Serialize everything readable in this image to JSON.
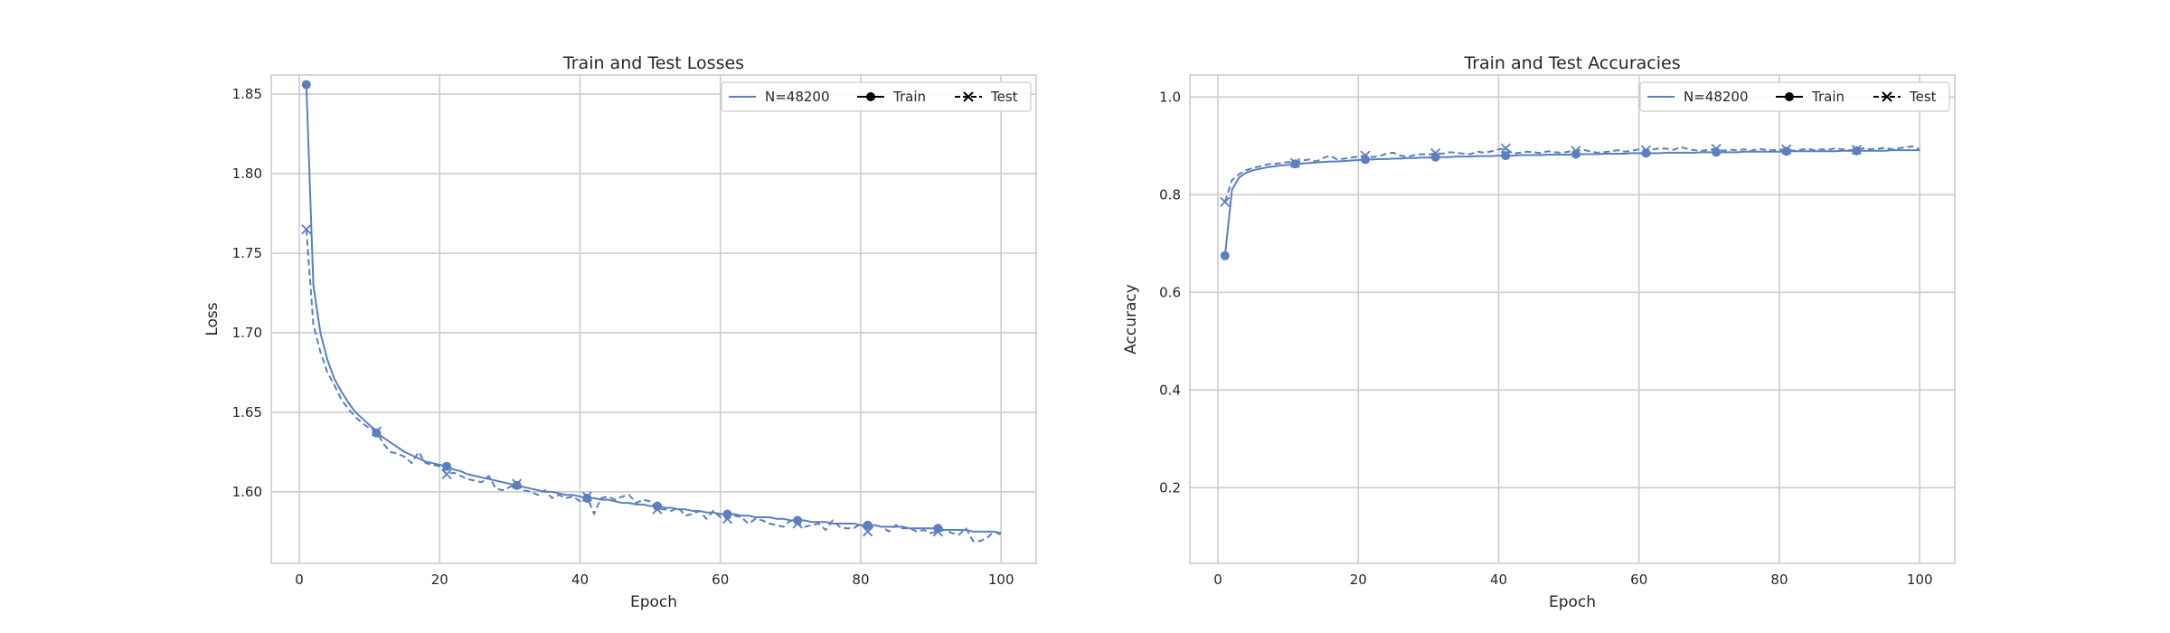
{
  "colors": {
    "series": "#5b7fbf",
    "legend_marker": "#000000",
    "grid": "#cccccc"
  },
  "chart_data": [
    {
      "type": "line",
      "title": "Train and Test Losses",
      "xlabel": "Epoch",
      "ylabel": "Loss",
      "xlim": [
        -4,
        105
      ],
      "ylim": [
        1.555,
        1.862
      ],
      "xticks": [
        0,
        20,
        40,
        60,
        80,
        100
      ],
      "yticks": [
        1.6,
        1.65,
        1.7,
        1.75,
        1.8,
        1.85
      ],
      "ytick_decimals": 2,
      "grid": true,
      "legend_position": "top-right",
      "legend": [
        "N=48200",
        "Train",
        "Test"
      ],
      "series": [
        {
          "name": "Train",
          "style": "solid",
          "marker": "circle",
          "marker_every": 10,
          "x": [
            1,
            2,
            3,
            4,
            5,
            6,
            7,
            8,
            9,
            10,
            11,
            12,
            13,
            14,
            15,
            16,
            17,
            18,
            19,
            20,
            21,
            22,
            23,
            24,
            25,
            26,
            27,
            28,
            29,
            30,
            31,
            32,
            33,
            34,
            35,
            36,
            37,
            38,
            39,
            40,
            41,
            42,
            43,
            44,
            45,
            46,
            47,
            48,
            49,
            50,
            51,
            52,
            53,
            54,
            55,
            56,
            57,
            58,
            59,
            60,
            61,
            62,
            63,
            64,
            65,
            66,
            67,
            68,
            69,
            70,
            71,
            72,
            73,
            74,
            75,
            76,
            77,
            78,
            79,
            80,
            81,
            82,
            83,
            84,
            85,
            86,
            87,
            88,
            89,
            90,
            91,
            92,
            93,
            94,
            95,
            96,
            97,
            98,
            99,
            100
          ],
          "y": [
            1.856,
            1.73,
            1.7,
            1.683,
            1.671,
            1.663,
            1.656,
            1.65,
            1.646,
            1.642,
            1.637,
            1.634,
            1.631,
            1.628,
            1.625,
            1.623,
            1.621,
            1.619,
            1.618,
            1.617,
            1.616,
            1.614,
            1.613,
            1.611,
            1.61,
            1.609,
            1.608,
            1.607,
            1.606,
            1.605,
            1.604,
            1.603,
            1.602,
            1.601,
            1.6,
            1.6,
            1.599,
            1.598,
            1.598,
            1.597,
            1.596,
            1.596,
            1.595,
            1.595,
            1.594,
            1.593,
            1.593,
            1.592,
            1.592,
            1.591,
            1.591,
            1.59,
            1.59,
            1.589,
            1.589,
            1.588,
            1.588,
            1.587,
            1.587,
            1.586,
            1.586,
            1.586,
            1.585,
            1.585,
            1.584,
            1.584,
            1.584,
            1.583,
            1.583,
            1.582,
            1.582,
            1.582,
            1.581,
            1.581,
            1.581,
            1.58,
            1.58,
            1.58,
            1.58,
            1.579,
            1.579,
            1.579,
            1.578,
            1.578,
            1.578,
            1.578,
            1.577,
            1.577,
            1.577,
            1.577,
            1.577,
            1.576,
            1.576,
            1.576,
            1.576,
            1.575,
            1.575,
            1.575,
            1.575,
            1.574
          ]
        },
        {
          "name": "Test",
          "style": "dashed",
          "marker": "x",
          "marker_every": 10,
          "x": [
            1,
            2,
            3,
            4,
            5,
            6,
            7,
            8,
            9,
            10,
            11,
            12,
            13,
            14,
            15,
            16,
            17,
            18,
            19,
            20,
            21,
            22,
            23,
            24,
            25,
            26,
            27,
            28,
            29,
            30,
            31,
            32,
            33,
            34,
            35,
            36,
            37,
            38,
            39,
            40,
            41,
            42,
            43,
            44,
            45,
            46,
            47,
            48,
            49,
            50,
            51,
            52,
            53,
            54,
            55,
            56,
            57,
            58,
            59,
            60,
            61,
            62,
            63,
            64,
            65,
            66,
            67,
            68,
            69,
            70,
            71,
            72,
            73,
            74,
            75,
            76,
            77,
            78,
            79,
            80,
            81,
            82,
            83,
            84,
            85,
            86,
            87,
            88,
            89,
            90,
            91,
            92,
            93,
            94,
            95,
            96,
            97,
            98,
            99,
            100
          ],
          "y": [
            1.765,
            1.705,
            1.688,
            1.675,
            1.667,
            1.658,
            1.652,
            1.647,
            1.643,
            1.64,
            1.638,
            1.63,
            1.625,
            1.624,
            1.622,
            1.618,
            1.625,
            1.618,
            1.617,
            1.616,
            1.611,
            1.612,
            1.61,
            1.608,
            1.607,
            1.606,
            1.61,
            1.602,
            1.601,
            1.603,
            1.605,
            1.601,
            1.6,
            1.598,
            1.601,
            1.596,
            1.598,
            1.596,
            1.597,
            1.594,
            1.597,
            1.586,
            1.596,
            1.597,
            1.595,
            1.597,
            1.598,
            1.593,
            1.595,
            1.594,
            1.589,
            1.589,
            1.588,
            1.59,
            1.585,
            1.586,
            1.588,
            1.583,
            1.588,
            1.584,
            1.583,
            1.585,
            1.584,
            1.58,
            1.583,
            1.582,
            1.58,
            1.579,
            1.578,
            1.582,
            1.58,
            1.578,
            1.579,
            1.58,
            1.576,
            1.582,
            1.578,
            1.577,
            1.577,
            1.58,
            1.575,
            1.579,
            1.578,
            1.575,
            1.579,
            1.577,
            1.577,
            1.575,
            1.576,
            1.574,
            1.575,
            1.576,
            1.574,
            1.573,
            1.577,
            1.569,
            1.569,
            1.571,
            1.575,
            1.573
          ]
        }
      ]
    },
    {
      "type": "line",
      "title": "Train and Test Accuracies",
      "xlabel": "Epoch",
      "ylabel": "Accuracy",
      "xlim": [
        -4,
        105
      ],
      "ylim": [
        0.045,
        1.045
      ],
      "xticks": [
        0,
        20,
        40,
        60,
        80,
        100
      ],
      "yticks": [
        0.2,
        0.4,
        0.6,
        0.8,
        1.0
      ],
      "ytick_decimals": 1,
      "grid": true,
      "legend_position": "top-right",
      "legend": [
        "N=48200",
        "Train",
        "Test"
      ],
      "series": [
        {
          "name": "Train",
          "style": "solid",
          "marker": "circle",
          "marker_every": 10,
          "x": [
            1,
            2,
            3,
            4,
            5,
            6,
            7,
            8,
            9,
            10,
            11,
            12,
            13,
            14,
            15,
            16,
            17,
            18,
            19,
            20,
            21,
            22,
            23,
            24,
            25,
            26,
            27,
            28,
            29,
            30,
            31,
            32,
            33,
            34,
            35,
            36,
            37,
            38,
            39,
            40,
            41,
            42,
            43,
            44,
            45,
            46,
            47,
            48,
            49,
            50,
            51,
            52,
            53,
            54,
            55,
            56,
            57,
            58,
            59,
            60,
            61,
            62,
            63,
            64,
            65,
            66,
            67,
            68,
            69,
            70,
            71,
            72,
            73,
            74,
            75,
            76,
            77,
            78,
            79,
            80,
            81,
            82,
            83,
            84,
            85,
            86,
            87,
            88,
            89,
            90,
            91,
            92,
            93,
            94,
            95,
            96,
            97,
            98,
            99,
            100
          ],
          "y": [
            0.675,
            0.81,
            0.835,
            0.845,
            0.85,
            0.853,
            0.856,
            0.858,
            0.86,
            0.861,
            0.863,
            0.864,
            0.865,
            0.866,
            0.867,
            0.868,
            0.868,
            0.869,
            0.87,
            0.871,
            0.872,
            0.872,
            0.873,
            0.873,
            0.874,
            0.874,
            0.875,
            0.875,
            0.876,
            0.876,
            0.877,
            0.877,
            0.877,
            0.878,
            0.878,
            0.878,
            0.879,
            0.879,
            0.879,
            0.88,
            0.88,
            0.88,
            0.881,
            0.881,
            0.881,
            0.881,
            0.882,
            0.882,
            0.882,
            0.882,
            0.883,
            0.883,
            0.883,
            0.883,
            0.884,
            0.884,
            0.884,
            0.884,
            0.885,
            0.885,
            0.885,
            0.885,
            0.885,
            0.886,
            0.886,
            0.886,
            0.886,
            0.886,
            0.887,
            0.887,
            0.887,
            0.887,
            0.887,
            0.887,
            0.888,
            0.888,
            0.888,
            0.888,
            0.888,
            0.888,
            0.889,
            0.889,
            0.889,
            0.889,
            0.889,
            0.889,
            0.889,
            0.889,
            0.89,
            0.89,
            0.89,
            0.89,
            0.89,
            0.89,
            0.89,
            0.891,
            0.891,
            0.891,
            0.891,
            0.891
          ]
        },
        {
          "name": "Test",
          "style": "dashed",
          "marker": "x",
          "marker_every": 10,
          "x": [
            1,
            2,
            3,
            4,
            5,
            6,
            7,
            8,
            9,
            10,
            11,
            12,
            13,
            14,
            15,
            16,
            17,
            18,
            19,
            20,
            21,
            22,
            23,
            24,
            25,
            26,
            27,
            28,
            29,
            30,
            31,
            32,
            33,
            34,
            35,
            36,
            37,
            38,
            39,
            40,
            41,
            42,
            43,
            44,
            45,
            46,
            47,
            48,
            49,
            50,
            51,
            52,
            53,
            54,
            55,
            56,
            57,
            58,
            59,
            60,
            61,
            62,
            63,
            64,
            65,
            66,
            67,
            68,
            69,
            70,
            71,
            72,
            73,
            74,
            75,
            76,
            77,
            78,
            79,
            80,
            81,
            82,
            83,
            84,
            85,
            86,
            87,
            88,
            89,
            90,
            91,
            92,
            93,
            94,
            95,
            96,
            97,
            98,
            99,
            100
          ],
          "y": [
            0.785,
            0.83,
            0.842,
            0.85,
            0.855,
            0.858,
            0.862,
            0.863,
            0.865,
            0.867,
            0.865,
            0.87,
            0.872,
            0.868,
            0.875,
            0.88,
            0.872,
            0.874,
            0.876,
            0.878,
            0.88,
            0.877,
            0.879,
            0.884,
            0.886,
            0.88,
            0.878,
            0.881,
            0.883,
            0.882,
            0.885,
            0.884,
            0.887,
            0.886,
            0.884,
            0.883,
            0.888,
            0.886,
            0.889,
            0.893,
            0.895,
            0.884,
            0.886,
            0.888,
            0.887,
            0.885,
            0.889,
            0.887,
            0.886,
            0.888,
            0.89,
            0.892,
            0.889,
            0.886,
            0.887,
            0.889,
            0.891,
            0.888,
            0.89,
            0.893,
            0.891,
            0.893,
            0.895,
            0.894,
            0.892,
            0.898,
            0.893,
            0.891,
            0.89,
            0.892,
            0.894,
            0.89,
            0.892,
            0.891,
            0.893,
            0.89,
            0.894,
            0.892,
            0.891,
            0.892,
            0.893,
            0.89,
            0.892,
            0.894,
            0.891,
            0.893,
            0.892,
            0.895,
            0.893,
            0.891,
            0.892,
            0.895,
            0.893,
            0.894,
            0.896,
            0.893,
            0.895,
            0.897,
            0.899,
            0.893
          ]
        }
      ]
    }
  ]
}
